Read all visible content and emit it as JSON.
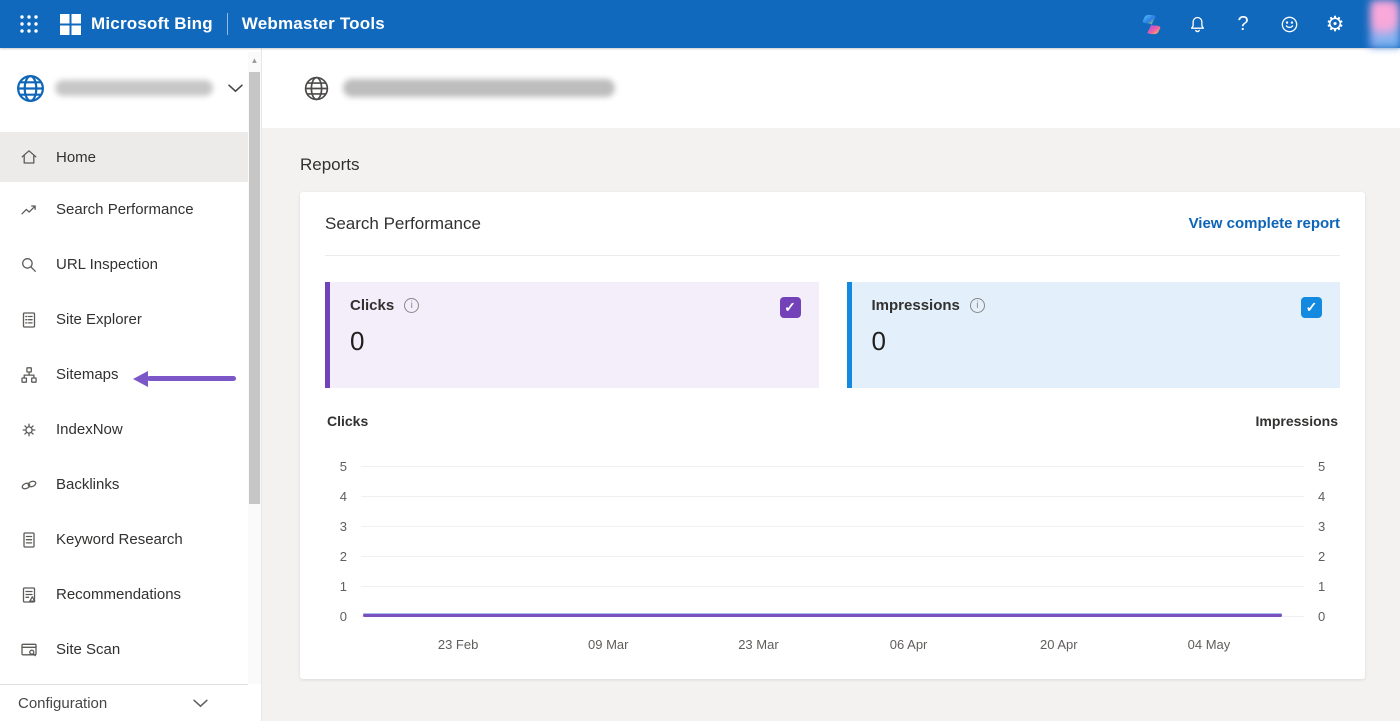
{
  "topbar": {
    "brand": "Microsoft Bing",
    "product": "Webmaster Tools",
    "glyphs": {
      "help": "?",
      "settings": "⚙",
      "check": "✓",
      "scroll_up": "▲"
    }
  },
  "sidebar": {
    "items": [
      {
        "label": "Home",
        "selected": true
      },
      {
        "label": "Search Performance"
      },
      {
        "label": "URL Inspection"
      },
      {
        "label": "Site Explorer"
      },
      {
        "label": "Sitemaps"
      },
      {
        "label": "IndexNow"
      },
      {
        "label": "Backlinks"
      },
      {
        "label": "Keyword Research"
      },
      {
        "label": "Recommendations"
      },
      {
        "label": "Site Scan"
      }
    ],
    "footer_section": "Configuration"
  },
  "main": {
    "reports_title": "Reports",
    "card": {
      "title": "Search Performance",
      "link_label": "View complete report"
    },
    "metrics": [
      {
        "label": "Clicks",
        "value": "0",
        "checked": true,
        "accent": "#7442b8",
        "bg": "#f3eefa"
      },
      {
        "label": "Impressions",
        "value": "0",
        "checked": true,
        "accent": "#1389e0",
        "bg": "#e3f0fb"
      }
    ]
  },
  "chart_data": {
    "type": "line",
    "title": "Search Performance",
    "x": [
      "23 Feb",
      "09 Mar",
      "23 Mar",
      "06 Apr",
      "20 Apr",
      "04 May"
    ],
    "series": [
      {
        "name": "Clicks",
        "color": "#7a4fc0",
        "values": [
          0,
          0,
          0,
          0,
          0,
          0
        ]
      },
      {
        "name": "Impressions",
        "color": "#a9bce9",
        "values": [
          0,
          0,
          0,
          0,
          0,
          0
        ]
      }
    ],
    "left_axis_label": "Clicks",
    "right_axis_label": "Impressions",
    "y_ticks": [
      5,
      4,
      3,
      2,
      1,
      0
    ],
    "ylim": [
      0,
      5
    ],
    "grid": true,
    "legend_position": "none"
  }
}
